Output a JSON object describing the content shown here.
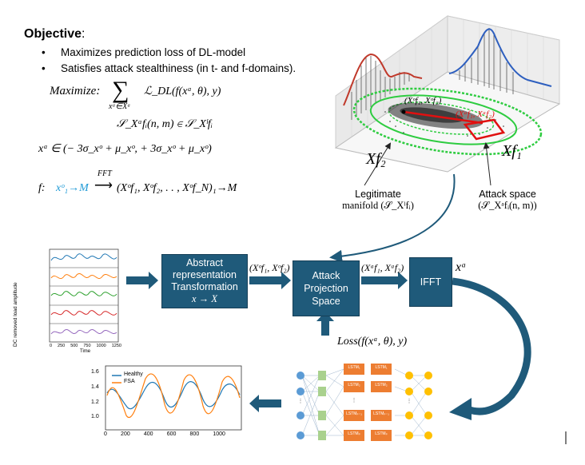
{
  "objective": {
    "label": "Objective",
    "colon": ":",
    "bullets": [
      "Maximizes prediction loss of DL-model",
      "Satisfies attack stealthiness (in t- and f-domains)."
    ]
  },
  "equations": {
    "maximize": "Maximize:",
    "sum_sub": "xᵃ∈Xᵃ",
    "loss": "ℒ_DL(f(xᵃ, θ), y)",
    "constraint": "𝒮_Xᵃfᵢ(n, m) ∈ 𝒮_Xˡfᵢ",
    "bounds": "xᵃ ∈ (− 3σ_xᵒ + μ_xᵒ, + 3σ_xᵒ + μ_xᵒ)",
    "fft_lhs": "f:",
    "fft_input": "xᵒ₁→M",
    "fft_label": "FFT",
    "fft_rhs": "(Xᵒf₁, Xᵒf₂, . . , Xᵒf_N)₁→M"
  },
  "plot3d": {
    "point_label": "(Xᵒf₁, Xᵒf₂)",
    "attack_label": "(Xᵃf₁, Xᵃf₂)",
    "axis_x": "Xf₂",
    "axis_y": "Xf₁",
    "legit_caption_line1": "Legitimate",
    "legit_caption_line2": "manifold (𝒮_Xˡfᵢ)",
    "attack_caption_line1": "Attack space",
    "attack_caption_line2": "(𝒮_Xᵃfᵢ(n, m))"
  },
  "ts_plot": {
    "ylabel": "DC removed load amplitude",
    "xlabel": "Time",
    "xticks": [
      "0",
      "250",
      "500",
      "750",
      "1000",
      "1250"
    ],
    "colors": [
      "#1f77b4",
      "#ff7f0e",
      "#2ca02c",
      "#d62728",
      "#9467bd"
    ]
  },
  "flow": {
    "box1_line1": "Abstract",
    "box1_line2": "representation",
    "box1_line3": "Transformation",
    "box1_line4": "x → X",
    "box1_out": "(Xᵒf₁, Xᵒf₂)",
    "box2_line1": "Attack",
    "box2_line2": "Projection",
    "box2_line3": "Space",
    "box2_out": "(Xᵃf₁, Xᵃf₂)",
    "box3": "IFFT",
    "box3_out": "xᵃ",
    "loss_label": "Loss(f(xᵃ, θ), y)"
  },
  "network": {
    "lstm_labels": [
      "LSTM₁",
      "LSTM₁",
      "LSTM₂",
      "LSTM₂",
      "LSTMₚ₋₁",
      "LSTMₚ₋₁",
      "LSTMₚ",
      "LSTMₚ"
    ]
  },
  "result_plot": {
    "legend": [
      "Healthy",
      "FSA"
    ],
    "colors": [
      "#1f77b4",
      "#ff7f0e"
    ],
    "yticks": [
      "1.6",
      "1.4",
      "1.2",
      "1.0"
    ],
    "xticks": [
      "0",
      "200",
      "400",
      "600",
      "800",
      "1000"
    ]
  }
}
